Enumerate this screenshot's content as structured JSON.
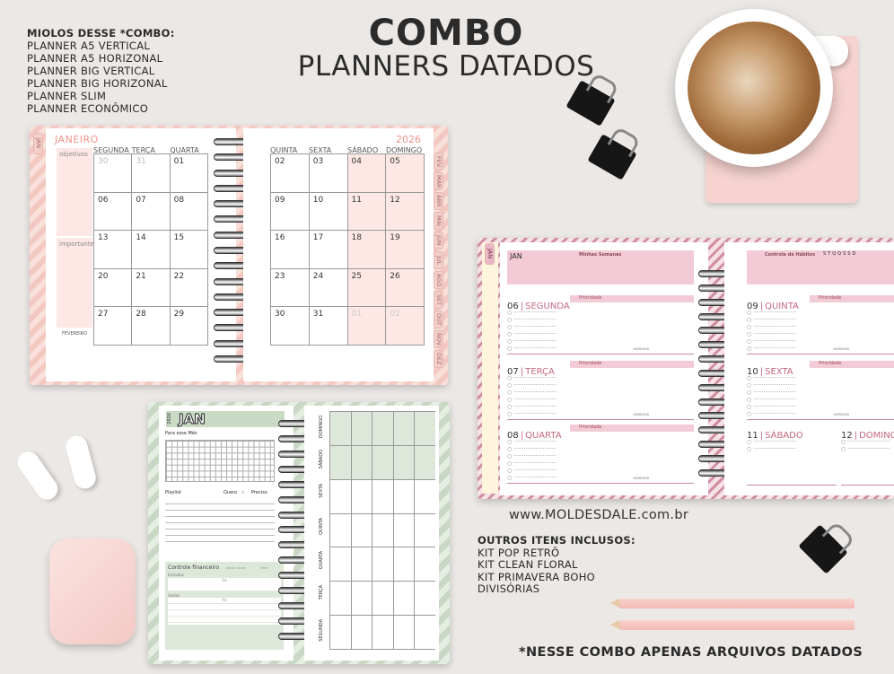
{
  "header": {
    "title": "COMBO",
    "subtitle": "PLANNERS DATADOS"
  },
  "miolos": {
    "heading": "MIOLOS DESSE *COMBO:",
    "items": [
      "PLANNER A5 VERTICAL",
      "PLANNER A5 HORIZONAL",
      "PLANNER BIG VERTICAL",
      "PLANNER BIG HORIZONAL",
      "PLANNER SLIM",
      "PLANNER ECONÔMICO"
    ]
  },
  "monthly": {
    "tab": "JAN",
    "month": "JANEIRO",
    "year": "2026",
    "objectives": "objetivos",
    "important": "importante",
    "mini_month": "FEVEREIRO",
    "days_left": [
      "SEGUNDA",
      "TERÇA",
      "QUARTA"
    ],
    "days_right": [
      "QUINTA",
      "SEXTA",
      "SÁBADO",
      "DOMINGO"
    ],
    "dates_left": [
      "30",
      "31",
      "01",
      "06",
      "07",
      "08",
      "13",
      "14",
      "15",
      "20",
      "21",
      "22",
      "27",
      "28",
      "29"
    ],
    "dates_right": [
      "02",
      "03",
      "04",
      "05",
      "09",
      "10",
      "11",
      "12",
      "16",
      "17",
      "18",
      "19",
      "23",
      "24",
      "25",
      "26",
      "30",
      "31",
      "01",
      "02"
    ],
    "month_tabs": [
      "FEV",
      "MAR",
      "ABR",
      "MAI",
      "JUN",
      "JUL",
      "AGO",
      "SET",
      "OUT",
      "NOV",
      "DEZ"
    ],
    "colors": {
      "accent": "#f0948a",
      "weekend": "#fde8e6"
    }
  },
  "weekly": {
    "tab": "JAN",
    "month": "JAN",
    "goals": "Minhas Semanas",
    "habits": "Controle de Hábitos",
    "habit_days": "STQQSSD",
    "priority": "Prioridade",
    "hours": "HIDRATAR",
    "days": [
      {
        "num": "06",
        "name": "SEGUNDA"
      },
      {
        "num": "07",
        "name": "TERÇA"
      },
      {
        "num": "08",
        "name": "QUARTA"
      },
      {
        "num": "09",
        "name": "QUINTA"
      },
      {
        "num": "10",
        "name": "SEXTA"
      },
      {
        "num": "11",
        "name": "SÁBADO"
      },
      {
        "num": "12",
        "name": "DOMINGO"
      }
    ],
    "colors": {
      "accent": "#c4697f",
      "band": "#f2cbd6"
    }
  },
  "slim": {
    "year": "2026",
    "month": "JAN",
    "for_month": "Para esse Mês",
    "playlist": "Playlist",
    "want": "Quero",
    "x": "x",
    "need": "Preciso",
    "finance": "Controle financeiro",
    "initial": "Saldo inicial",
    "goal": "Meta",
    "income": "Entradas",
    "expenses": "Saídas",
    "currency": "R$",
    "days": [
      "DOMINGO",
      "SÁBADO",
      "SEXTA",
      "QUINTA",
      "QUARTA",
      "TERÇA",
      "SEGUNDA"
    ],
    "colors": {
      "accent": "#c9dac5"
    }
  },
  "website": "www.MOLDESDALE.com.br",
  "outros": {
    "heading": "OUTROS ITENS INCLUSOS:",
    "items": [
      "KIT POP RETRÔ",
      "KIT CLEAN FLORAL",
      "KIT PRIMAVERA BOHO",
      "DIVISÓRIAS"
    ]
  },
  "note": "*NESSE COMBO APENAS ARQUIVOS DATADOS"
}
